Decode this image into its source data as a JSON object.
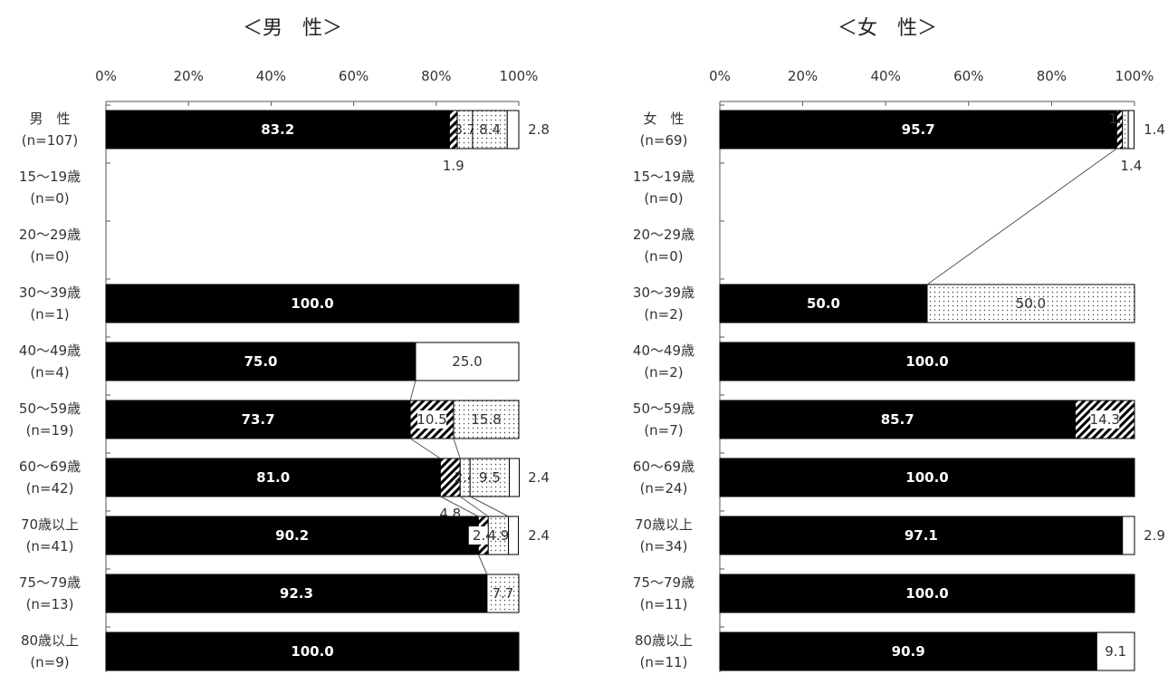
{
  "chart_data": [
    {
      "type": "bar",
      "orientation": "horizontal",
      "stacked": true,
      "percent": true,
      "title": "＜男　性＞",
      "xticks": [
        "0%",
        "20%",
        "40%",
        "60%",
        "80%",
        "100%"
      ],
      "xlim": [
        0,
        100
      ],
      "segment_styles": [
        "solid-black",
        "diagonal-hatch",
        "dotted",
        "white"
      ],
      "categories": [
        {
          "label": "男　性",
          "n": "(n=107)",
          "values": [
            83.2,
            1.9,
            3.7,
            8.4,
            2.8
          ],
          "labels": [
            "83.2",
            "1.9",
            "3.7",
            "8.4",
            "2.8"
          ]
        },
        {
          "label": "15～19歳",
          "n": "(n=0)",
          "values": [],
          "labels": []
        },
        {
          "label": "20～29歳",
          "n": "(n=0)",
          "values": [],
          "labels": []
        },
        {
          "label": "30～39歳",
          "n": "(n=1)",
          "values": [
            100.0
          ],
          "labels": [
            "100.0"
          ]
        },
        {
          "label": "40～49歳",
          "n": "(n=4)",
          "values": [
            75.0,
            25.0
          ],
          "labels": [
            "75.0",
            "25.0"
          ]
        },
        {
          "label": "50～59歳",
          "n": "(n=19)",
          "values": [
            73.7,
            10.5,
            15.8
          ],
          "labels": [
            "73.7",
            "10.5",
            "15.8"
          ]
        },
        {
          "label": "60～69歳",
          "n": "(n=42)",
          "values": [
            81.0,
            4.8,
            2.4,
            9.5,
            2.4
          ],
          "labels": [
            "81.0",
            "4.8",
            "2.4",
            "9.5",
            "2.4"
          ]
        },
        {
          "label": "70歳以上",
          "n": "(n=41)",
          "values": [
            90.2,
            2.4,
            4.9,
            2.4
          ],
          "labels": [
            "90.2",
            "2.4",
            "4.9",
            "2.4"
          ]
        },
        {
          "label": "75～79歳",
          "n": "(n=13)",
          "values": [
            92.3,
            7.7
          ],
          "labels": [
            "92.3",
            "7.7"
          ]
        },
        {
          "label": "80歳以上",
          "n": "(n=9)",
          "values": [
            100.0
          ],
          "labels": [
            "100.0"
          ]
        }
      ]
    },
    {
      "type": "bar",
      "orientation": "horizontal",
      "stacked": true,
      "percent": true,
      "title": "＜女　性＞",
      "xticks": [
        "0%",
        "20%",
        "40%",
        "60%",
        "80%",
        "100%"
      ],
      "xlim": [
        0,
        100
      ],
      "segment_styles": [
        "solid-black",
        "diagonal-hatch",
        "dotted",
        "white"
      ],
      "categories": [
        {
          "label": "女　性",
          "n": "(n=69)",
          "values": [
            95.7,
            1.4,
            1.4,
            1.4
          ],
          "labels": [
            "95.7",
            "1.4",
            "1.4",
            "1.4"
          ]
        },
        {
          "label": "15～19歳",
          "n": "(n=0)",
          "values": [],
          "labels": []
        },
        {
          "label": "20～29歳",
          "n": "(n=0)",
          "values": [],
          "labels": []
        },
        {
          "label": "30～39歳",
          "n": "(n=2)",
          "values": [
            50.0,
            50.0
          ],
          "labels": [
            "50.0",
            "50.0"
          ]
        },
        {
          "label": "40～49歳",
          "n": "(n=2)",
          "values": [
            100.0
          ],
          "labels": [
            "100.0"
          ]
        },
        {
          "label": "50～59歳",
          "n": "(n=7)",
          "values": [
            85.7,
            14.3
          ],
          "labels": [
            "85.7",
            "14.3"
          ]
        },
        {
          "label": "60～69歳",
          "n": "(n=24)",
          "values": [
            100.0
          ],
          "labels": [
            "100.0"
          ]
        },
        {
          "label": "70歳以上",
          "n": "(n=34)",
          "values": [
            97.1,
            2.9
          ],
          "labels": [
            "97.1",
            "2.9"
          ]
        },
        {
          "label": "75～79歳",
          "n": "(n=11)",
          "values": [
            100.0
          ],
          "labels": [
            "100.0"
          ]
        },
        {
          "label": "80歳以上",
          "n": "(n=11)",
          "values": [
            90.9,
            9.1
          ],
          "labels": [
            "90.9",
            "9.1"
          ]
        }
      ]
    }
  ]
}
